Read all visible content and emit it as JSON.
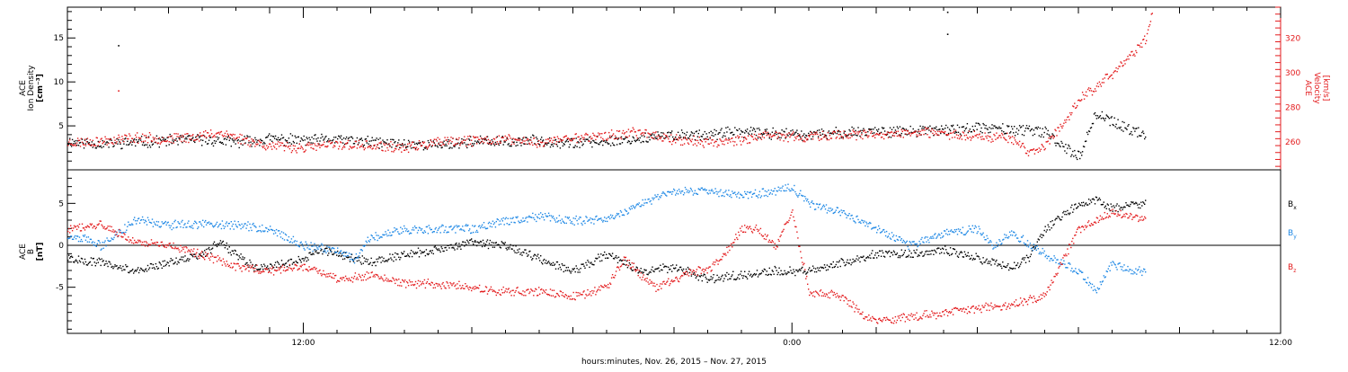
{
  "chart_data": [
    {
      "type": "scatter",
      "panel": "top",
      "y_left_label_lines": [
        "ACE",
        "Ion Density",
        "[cm⁻³]"
      ],
      "y_right_label_lines": [
        "ACE",
        "Velocity",
        "[km/s]"
      ],
      "left_axis": {
        "ylim": [
          0,
          18.5
        ],
        "ticks": [
          5,
          10,
          15
        ],
        "color": "#000000"
      },
      "right_axis": {
        "ylim": [
          244,
          338
        ],
        "ticks": [
          260,
          280,
          300,
          320
        ],
        "color": "#e31a1c"
      },
      "x_range_hours": [
        0,
        36
      ],
      "series": [
        {
          "axis": "left",
          "color": "#000000",
          "points": [
            [
              0,
              3.3
            ],
            [
              1,
              3.0
            ],
            [
              2,
              3.2
            ],
            [
              3,
              3.4
            ],
            [
              4,
              3.5
            ],
            [
              5,
              3.2
            ],
            [
              6,
              3.6
            ],
            [
              7,
              3.4
            ],
            [
              8,
              3.5
            ],
            [
              9,
              3.2
            ],
            [
              10,
              3.0
            ],
            [
              11,
              2.9
            ],
            [
              12,
              3.3
            ],
            [
              13,
              3.2
            ],
            [
              14,
              3.4
            ],
            [
              15,
              3.1
            ],
            [
              16,
              3.3
            ],
            [
              17,
              3.6
            ],
            [
              18,
              4.0
            ],
            [
              19,
              4.1
            ],
            [
              20,
              4.3
            ],
            [
              21,
              4.2
            ],
            [
              22,
              4.0
            ],
            [
              23,
              4.3
            ],
            [
              24,
              4.5
            ],
            [
              25,
              4.4
            ],
            [
              26,
              4.6
            ],
            [
              27,
              4.8
            ],
            [
              28,
              4.7
            ],
            [
              29,
              4.3
            ],
            [
              30,
              1.5
            ],
            [
              30.5,
              6.5
            ],
            [
              31,
              5.5
            ],
            [
              31.5,
              4.5
            ],
            [
              32,
              4.2
            ]
          ],
          "outliers": [
            [
              1.5,
              14.2
            ],
            [
              26.1,
              18.0
            ],
            [
              26.1,
              15.5
            ]
          ]
        },
        {
          "axis": "right",
          "color": "#e31a1c",
          "points": [
            [
              0,
              260
            ],
            [
              1,
              261
            ],
            [
              2,
              263
            ],
            [
              3,
              262
            ],
            [
              4,
              264
            ],
            [
              4.5,
              266
            ],
            [
              5,
              263
            ],
            [
              6,
              258
            ],
            [
              7,
              257
            ],
            [
              8,
              259
            ],
            [
              9,
              258
            ],
            [
              10,
              257
            ],
            [
              11,
              260
            ],
            [
              12,
              261
            ],
            [
              13,
              262
            ],
            [
              14,
              260
            ],
            [
              15,
              263
            ],
            [
              16,
              264
            ],
            [
              17,
              266
            ],
            [
              18,
              262
            ],
            [
              19,
              260
            ],
            [
              20,
              262
            ],
            [
              21,
              264
            ],
            [
              22,
              263
            ],
            [
              23,
              265
            ],
            [
              24,
              264
            ],
            [
              25,
              266
            ],
            [
              26,
              265
            ],
            [
              27,
              264
            ],
            [
              28,
              263
            ],
            [
              28.5,
              254
            ],
            [
              29,
              258
            ],
            [
              29.5,
              270
            ],
            [
              30,
              285
            ],
            [
              30.5,
              292
            ],
            [
              31,
              300
            ],
            [
              31.5,
              310
            ],
            [
              32,
              320
            ],
            [
              32.2,
              335
            ]
          ],
          "outliers": [
            [
              1.5,
              290
            ]
          ]
        }
      ]
    },
    {
      "type": "scatter",
      "panel": "bottom",
      "y_left_label_lines": [
        "ACE",
        "B",
        "[nT]"
      ],
      "ylim": [
        -10.5,
        9
      ],
      "yticks": [
        -5,
        0,
        5
      ],
      "x_range_hours": [
        0,
        36
      ],
      "x_ticks": [
        {
          "hours": 7,
          "label": "12:00"
        },
        {
          "hours": 21.5,
          "label": "0:00"
        },
        {
          "hours": 36,
          "label": "12:00"
        }
      ],
      "xlabel": "hours:minutes, Nov. 26, 2015 – Nov. 27, 2015",
      "series": [
        {
          "name_base": "B",
          "name_sub": "x",
          "color": "#000000",
          "points": [
            [
              0,
              -1.5
            ],
            [
              1,
              -2.0
            ],
            [
              2,
              -3.0
            ],
            [
              3,
              -2.0
            ],
            [
              4,
              -1.0
            ],
            [
              4.5,
              0.5
            ],
            [
              5,
              -1.0
            ],
            [
              5.5,
              -2.5
            ],
            [
              6,
              -2.5
            ],
            [
              7,
              -1.5
            ],
            [
              7.5,
              -0.5
            ],
            [
              8,
              -1.0
            ],
            [
              9,
              -2.0
            ],
            [
              10,
              -1.0
            ],
            [
              11,
              -0.5
            ],
            [
              12,
              0.5
            ],
            [
              13,
              0
            ],
            [
              14,
              -1.5
            ],
            [
              15,
              -3.0
            ],
            [
              16,
              -1.0
            ],
            [
              17,
              -3.0
            ],
            [
              18,
              -2.5
            ],
            [
              19,
              -4.0
            ],
            [
              20,
              -3.5
            ],
            [
              21,
              -3.0
            ],
            [
              22,
              -3.0
            ],
            [
              23,
              -2.0
            ],
            [
              24,
              -1.0
            ],
            [
              25,
              -1.0
            ],
            [
              26,
              -0.5
            ],
            [
              27,
              -1.5
            ],
            [
              28,
              -2.5
            ],
            [
              28.5,
              -1.5
            ],
            [
              29,
              2.0
            ],
            [
              30,
              5.0
            ],
            [
              30.5,
              5.5
            ],
            [
              31,
              4.5
            ],
            [
              31.5,
              5.0
            ],
            [
              32,
              5.0
            ]
          ]
        },
        {
          "name_base": "B",
          "name_sub": "y",
          "color": "#1e88e5",
          "points": [
            [
              0,
              1.0
            ],
            [
              0.5,
              0.8
            ],
            [
              1,
              0
            ],
            [
              1.5,
              1.5
            ],
            [
              2,
              3.0
            ],
            [
              3,
              2.5
            ],
            [
              4,
              2.5
            ],
            [
              5,
              2.5
            ],
            [
              6,
              2.0
            ],
            [
              7,
              0
            ],
            [
              8,
              -0.5
            ],
            [
              8.5,
              -1.5
            ],
            [
              9,
              1.0
            ],
            [
              10,
              2.0
            ],
            [
              11,
              2.0
            ],
            [
              12,
              2.0
            ],
            [
              13,
              3.0
            ],
            [
              14,
              3.5
            ],
            [
              15,
              3.0
            ],
            [
              16,
              3.0
            ],
            [
              16.5,
              4.0
            ],
            [
              17,
              5.0
            ],
            [
              18,
              6.5
            ],
            [
              19,
              6.5
            ],
            [
              20,
              6.0
            ],
            [
              21,
              6.5
            ],
            [
              21.5,
              7.0
            ],
            [
              22,
              5.0
            ],
            [
              23,
              4.0
            ],
            [
              24,
              2.0
            ],
            [
              25,
              0
            ],
            [
              26,
              1.5
            ],
            [
              27,
              2.0
            ],
            [
              27.5,
              0
            ],
            [
              28,
              1.5
            ],
            [
              29,
              -1.0
            ],
            [
              30,
              -3.0
            ],
            [
              30.5,
              -5.5
            ],
            [
              31,
              -2.0
            ],
            [
              31.5,
              -3.0
            ],
            [
              32,
              -3.0
            ]
          ]
        },
        {
          "name_base": "B",
          "name_sub": "z",
          "color": "#e31a1c",
          "points": [
            [
              0,
              2.0
            ],
            [
              1,
              2.5
            ],
            [
              1.5,
              1.5
            ],
            [
              2,
              0.5
            ],
            [
              3,
              0
            ],
            [
              4,
              -1.0
            ],
            [
              5,
              -2.5
            ],
            [
              6,
              -3.0
            ],
            [
              7,
              -2.5
            ],
            [
              8,
              -4.0
            ],
            [
              9,
              -3.5
            ],
            [
              10,
              -4.5
            ],
            [
              11,
              -4.5
            ],
            [
              12,
              -5.0
            ],
            [
              13,
              -5.5
            ],
            [
              14,
              -5.5
            ],
            [
              15,
              -6.0
            ],
            [
              16,
              -5.0
            ],
            [
              16.5,
              -1.5
            ],
            [
              17,
              -3.5
            ],
            [
              17.5,
              -5.0
            ],
            [
              18,
              -4.0
            ],
            [
              18.5,
              -3.0
            ],
            [
              19,
              -3.0
            ],
            [
              19.5,
              -1.0
            ],
            [
              20,
              2.0
            ],
            [
              20.5,
              2.0
            ],
            [
              21,
              0
            ],
            [
              21.5,
              4.0
            ],
            [
              22,
              -5.5
            ],
            [
              23,
              -6.0
            ],
            [
              23.5,
              -8.0
            ],
            [
              24,
              -9.0
            ],
            [
              25,
              -8.5
            ],
            [
              26,
              -8.0
            ],
            [
              27,
              -7.5
            ],
            [
              28,
              -7.0
            ],
            [
              29,
              -6.0
            ],
            [
              29.5,
              -2.0
            ],
            [
              30,
              2.0
            ],
            [
              31,
              4.0
            ],
            [
              31.5,
              3.5
            ],
            [
              32,
              3.0
            ]
          ]
        }
      ]
    }
  ]
}
